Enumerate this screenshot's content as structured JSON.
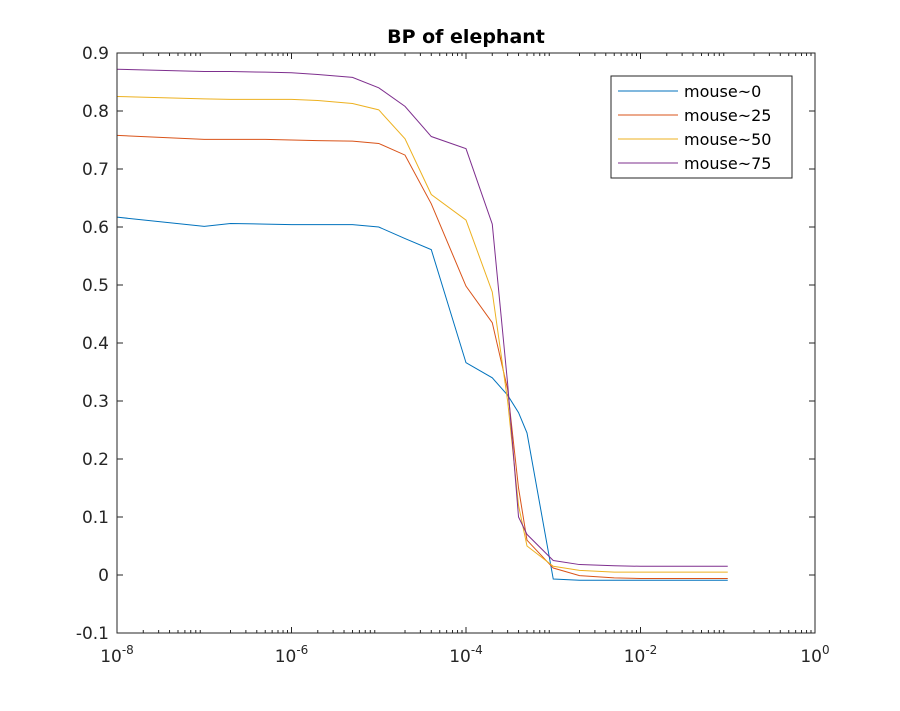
{
  "chart_data": {
    "type": "line",
    "title": "BP of elephant",
    "xlabel": "",
    "ylabel": "",
    "x_scale": "log",
    "xlim": [
      1e-08,
      1
    ],
    "ylim": [
      -0.1,
      0.9
    ],
    "x_ticks": [
      {
        "base": "10",
        "exp": "-8",
        "value": 1e-08
      },
      {
        "base": "10",
        "exp": "-6",
        "value": 1e-06
      },
      {
        "base": "10",
        "exp": "-4",
        "value": 0.0001
      },
      {
        "base": "10",
        "exp": "-2",
        "value": 0.01
      },
      {
        "base": "10",
        "exp": "0",
        "value": 1
      }
    ],
    "y_ticks": [
      "-0.1",
      "0",
      "0.1",
      "0.2",
      "0.3",
      "0.4",
      "0.5",
      "0.6",
      "0.7",
      "0.8",
      "0.9"
    ],
    "grid": false,
    "legend_position": "top-right",
    "x": [
      1e-08,
      1e-07,
      2e-07,
      5e-07,
      1e-06,
      2e-06,
      5e-06,
      1e-05,
      2e-05,
      4e-05,
      0.0001,
      0.0002,
      0.0003,
      0.0004,
      0.0005,
      0.001,
      0.002,
      0.005,
      0.01,
      0.1
    ],
    "series": [
      {
        "name": "mouse~0",
        "color": "#0072BD",
        "values": [
          0.617,
          0.601,
          0.606,
          0.605,
          0.604,
          0.604,
          0.604,
          0.6,
          0.58,
          0.561,
          0.366,
          0.34,
          0.31,
          0.28,
          0.245,
          -0.007,
          -0.009,
          -0.009,
          -0.009,
          -0.009
        ]
      },
      {
        "name": "mouse~25",
        "color": "#D95319",
        "values": [
          0.758,
          0.751,
          0.751,
          0.751,
          0.75,
          0.749,
          0.748,
          0.744,
          0.724,
          0.64,
          0.498,
          0.435,
          0.32,
          0.15,
          0.06,
          0.012,
          -0.001,
          -0.005,
          -0.006,
          -0.006
        ]
      },
      {
        "name": "mouse~50",
        "color": "#EDB120",
        "values": [
          0.825,
          0.821,
          0.82,
          0.82,
          0.82,
          0.818,
          0.813,
          0.802,
          0.752,
          0.656,
          0.612,
          0.488,
          0.3,
          0.12,
          0.05,
          0.015,
          0.008,
          0.005,
          0.005,
          0.005
        ]
      },
      {
        "name": "mouse~75",
        "color": "#7E2F8E",
        "values": [
          0.872,
          0.868,
          0.868,
          0.867,
          0.866,
          0.863,
          0.858,
          0.84,
          0.808,
          0.756,
          0.735,
          0.605,
          0.33,
          0.1,
          0.07,
          0.025,
          0.018,
          0.016,
          0.015,
          0.015
        ]
      }
    ]
  }
}
